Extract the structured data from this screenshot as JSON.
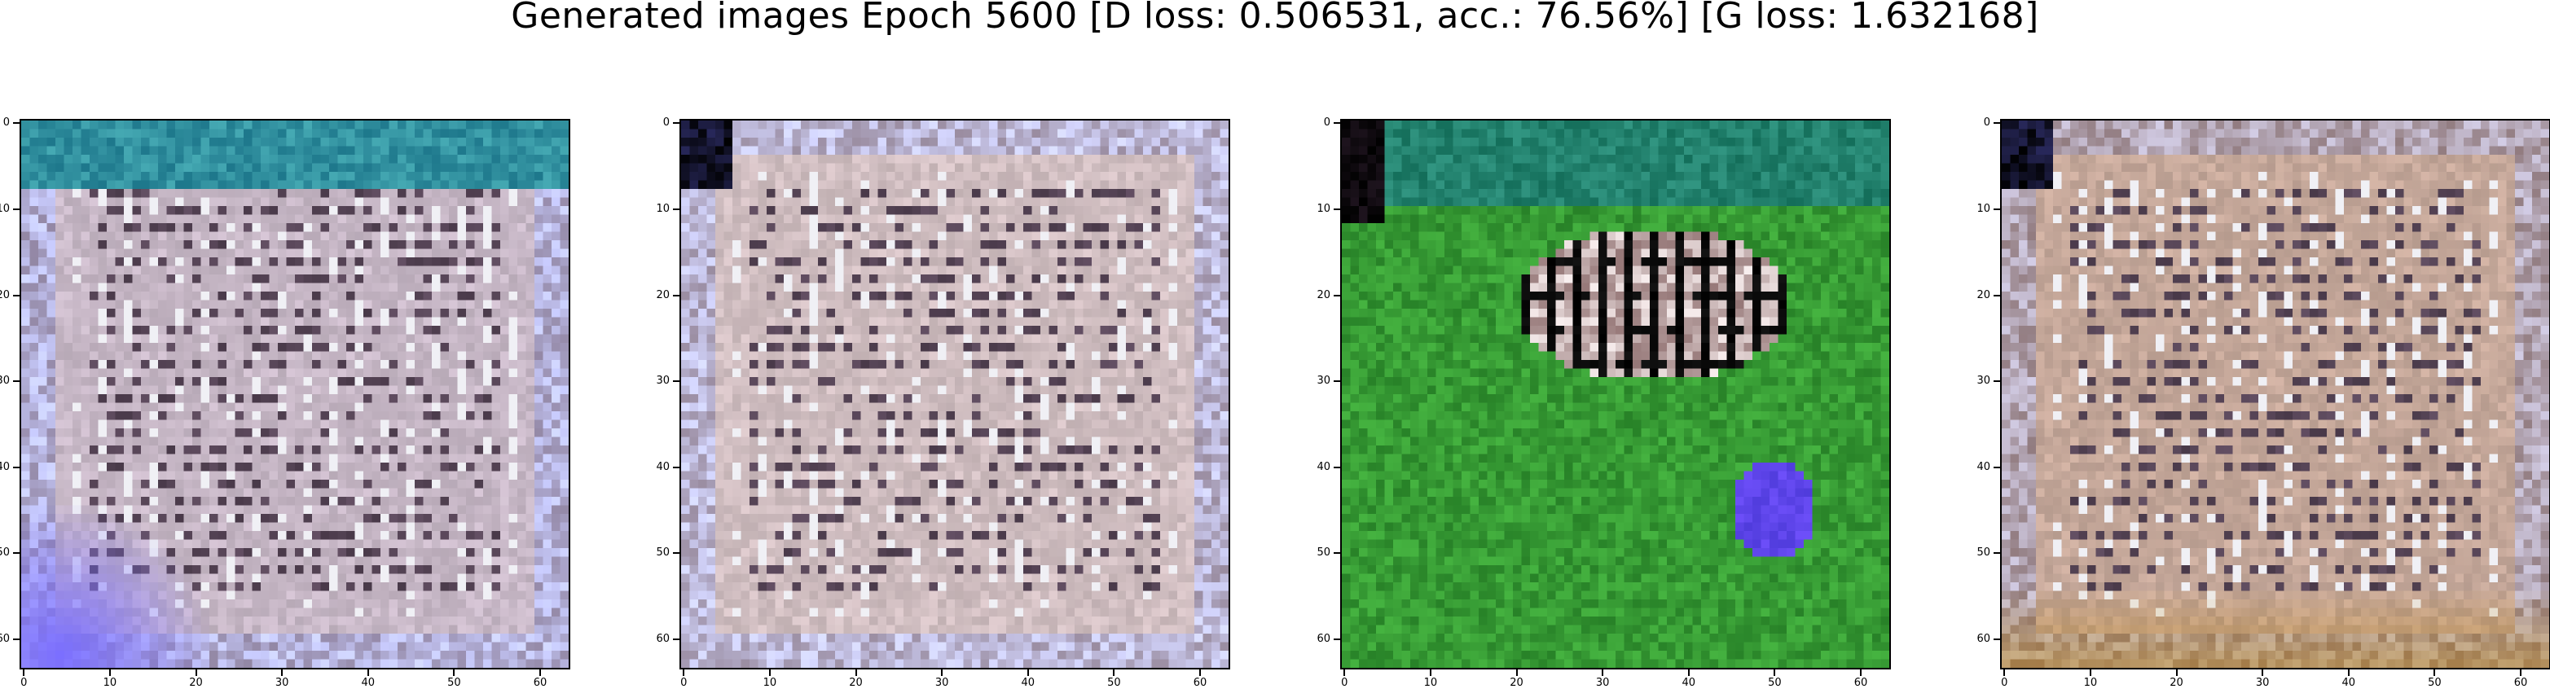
{
  "figure": {
    "title": "Generated images Epoch 5600 [D loss: 0.506531, acc.: 76.56%] [G loss: 1.632168]"
  },
  "axes": {
    "x_ticks": [
      "0",
      "10",
      "20",
      "30",
      "40",
      "50",
      "60"
    ],
    "y_ticks": [
      "0",
      "10",
      "20",
      "30",
      "40",
      "50",
      "60"
    ],
    "extent": [
      0,
      64
    ]
  },
  "panels": [
    {
      "name": "sample-1",
      "base_color": "#d9c8d8",
      "accent": "#7b6fd8",
      "dominant": "pink-white grid with blue corner"
    },
    {
      "name": "sample-2",
      "base_color": "#e3cfd2",
      "accent": "#5b3d35",
      "dominant": "pink-white grid"
    },
    {
      "name": "sample-3",
      "base_color": "#2f9a35",
      "accent": "#5f4fe6",
      "dominant": "green field with dark striped blob and blue spot"
    },
    {
      "name": "sample-4",
      "base_color": "#d7b7a8",
      "accent": "#b7792f",
      "dominant": "peach grid with brown bottom"
    }
  ]
}
